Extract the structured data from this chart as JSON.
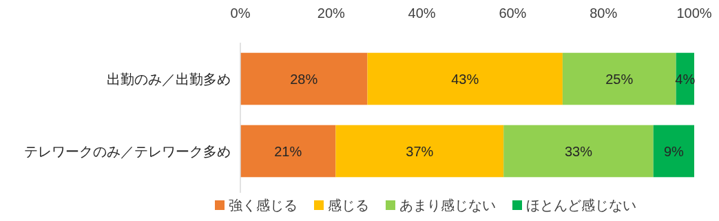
{
  "chart_data": {
    "type": "bar",
    "orientation": "horizontal",
    "stacked": true,
    "legend": "bottom",
    "categories": [
      "出勤のみ／出勤多め",
      "テレワークのみ／テレワーク多め"
    ],
    "xlim": [
      0,
      100
    ],
    "xticks": [
      {
        "value": 0,
        "label": "0%"
      },
      {
        "value": 20,
        "label": "20%"
      },
      {
        "value": 40,
        "label": "40%"
      },
      {
        "value": 60,
        "label": "60%"
      },
      {
        "value": 80,
        "label": "80%"
      },
      {
        "value": 100,
        "label": "100%"
      }
    ],
    "series": [
      {
        "name": "強く感じる",
        "color": "#ed7d31",
        "values": [
          28,
          21
        ],
        "value_labels": [
          "28%",
          "21%"
        ]
      },
      {
        "name": "感じる",
        "color": "#ffc000",
        "values": [
          43,
          37
        ],
        "value_labels": [
          "43%",
          "37%"
        ]
      },
      {
        "name": "あまり感じない",
        "color": "#92d050",
        "values": [
          25,
          33
        ],
        "value_labels": [
          "25%",
          "33%"
        ]
      },
      {
        "name": "ほとんど感じない",
        "color": "#00b050",
        "values": [
          4,
          9
        ],
        "value_labels": [
          "4%",
          "9%"
        ]
      }
    ]
  }
}
